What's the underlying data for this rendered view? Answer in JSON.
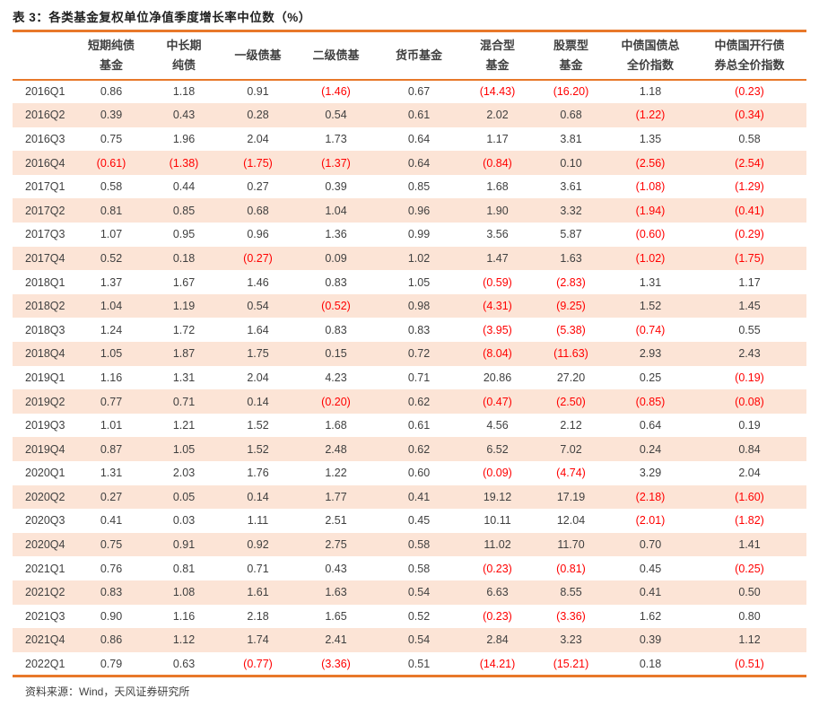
{
  "table": {
    "title": "表 3：各类基金复权单位净值季度增长率中位数（%）",
    "columns": [
      "",
      "短期纯债\n基金",
      "中长期\n纯债",
      "一级债基",
      "二级债基",
      "货币基金",
      "混合型\n基金",
      "股票型\n基金",
      "中债国债总\n全价指数",
      "中债国开行债\n券总全价指数"
    ],
    "rows": [
      {
        "quarter": "2016Q1",
        "values": [
          "0.86",
          "1.18",
          "0.91",
          "(1.46)",
          "0.67",
          "(14.43)",
          "(16.20)",
          "1.18",
          "(0.23)"
        ]
      },
      {
        "quarter": "2016Q2",
        "values": [
          "0.39",
          "0.43",
          "0.28",
          "0.54",
          "0.61",
          "2.02",
          "0.68",
          "(1.22)",
          "(0.34)"
        ]
      },
      {
        "quarter": "2016Q3",
        "values": [
          "0.75",
          "1.96",
          "2.04",
          "1.73",
          "0.64",
          "1.17",
          "3.81",
          "1.35",
          "0.58"
        ]
      },
      {
        "quarter": "2016Q4",
        "values": [
          "(0.61)",
          "(1.38)",
          "(1.75)",
          "(1.37)",
          "0.64",
          "(0.84)",
          "0.10",
          "(2.56)",
          "(2.54)"
        ]
      },
      {
        "quarter": "2017Q1",
        "values": [
          "0.58",
          "0.44",
          "0.27",
          "0.39",
          "0.85",
          "1.68",
          "3.61",
          "(1.08)",
          "(1.29)"
        ]
      },
      {
        "quarter": "2017Q2",
        "values": [
          "0.81",
          "0.85",
          "0.68",
          "1.04",
          "0.96",
          "1.90",
          "3.32",
          "(1.94)",
          "(0.41)"
        ]
      },
      {
        "quarter": "2017Q3",
        "values": [
          "1.07",
          "0.95",
          "0.96",
          "1.36",
          "0.99",
          "3.56",
          "5.87",
          "(0.60)",
          "(0.29)"
        ]
      },
      {
        "quarter": "2017Q4",
        "values": [
          "0.52",
          "0.18",
          "(0.27)",
          "0.09",
          "1.02",
          "1.47",
          "1.63",
          "(1.02)",
          "(1.75)"
        ]
      },
      {
        "quarter": "2018Q1",
        "values": [
          "1.37",
          "1.67",
          "1.46",
          "0.83",
          "1.05",
          "(0.59)",
          "(2.83)",
          "1.31",
          "1.17"
        ]
      },
      {
        "quarter": "2018Q2",
        "values": [
          "1.04",
          "1.19",
          "0.54",
          "(0.52)",
          "0.98",
          "(4.31)",
          "(9.25)",
          "1.52",
          "1.45"
        ]
      },
      {
        "quarter": "2018Q3",
        "values": [
          "1.24",
          "1.72",
          "1.64",
          "0.83",
          "0.83",
          "(3.95)",
          "(5.38)",
          "(0.74)",
          "0.55"
        ]
      },
      {
        "quarter": "2018Q4",
        "values": [
          "1.05",
          "1.87",
          "1.75",
          "0.15",
          "0.72",
          "(8.04)",
          "(11.63)",
          "2.93",
          "2.43"
        ]
      },
      {
        "quarter": "2019Q1",
        "values": [
          "1.16",
          "1.31",
          "2.04",
          "4.23",
          "0.71",
          "20.86",
          "27.20",
          "0.25",
          "(0.19)"
        ]
      },
      {
        "quarter": "2019Q2",
        "values": [
          "0.77",
          "0.71",
          "0.14",
          "(0.20)",
          "0.62",
          "(0.47)",
          "(2.50)",
          "(0.85)",
          "(0.08)"
        ]
      },
      {
        "quarter": "2019Q3",
        "values": [
          "1.01",
          "1.21",
          "1.52",
          "1.68",
          "0.61",
          "4.56",
          "2.12",
          "0.64",
          "0.19"
        ]
      },
      {
        "quarter": "2019Q4",
        "values": [
          "0.87",
          "1.05",
          "1.52",
          "2.48",
          "0.62",
          "6.52",
          "7.02",
          "0.24",
          "0.84"
        ]
      },
      {
        "quarter": "2020Q1",
        "values": [
          "1.31",
          "2.03",
          "1.76",
          "1.22",
          "0.60",
          "(0.09)",
          "(4.74)",
          "3.29",
          "2.04"
        ]
      },
      {
        "quarter": "2020Q2",
        "values": [
          "0.27",
          "0.05",
          "0.14",
          "1.77",
          "0.41",
          "19.12",
          "17.19",
          "(2.18)",
          "(1.60)"
        ]
      },
      {
        "quarter": "2020Q3",
        "values": [
          "0.41",
          "0.03",
          "1.11",
          "2.51",
          "0.45",
          "10.11",
          "12.04",
          "(2.01)",
          "(1.82)"
        ]
      },
      {
        "quarter": "2020Q4",
        "values": [
          "0.75",
          "0.91",
          "0.92",
          "2.75",
          "0.58",
          "11.02",
          "11.70",
          "0.70",
          "1.41"
        ]
      },
      {
        "quarter": "2021Q1",
        "values": [
          "0.76",
          "0.81",
          "0.71",
          "0.43",
          "0.58",
          "(0.23)",
          "(0.81)",
          "0.45",
          "(0.25)"
        ]
      },
      {
        "quarter": "2021Q2",
        "values": [
          "0.83",
          "1.08",
          "1.61",
          "1.63",
          "0.54",
          "6.63",
          "8.55",
          "0.41",
          "0.50"
        ]
      },
      {
        "quarter": "2021Q3",
        "values": [
          "0.90",
          "1.16",
          "2.18",
          "1.65",
          "0.52",
          "(0.23)",
          "(3.36)",
          "1.62",
          "0.80"
        ]
      },
      {
        "quarter": "2021Q4",
        "values": [
          "0.86",
          "1.12",
          "1.74",
          "2.41",
          "0.54",
          "2.84",
          "3.23",
          "0.39",
          "1.12"
        ]
      },
      {
        "quarter": "2022Q1",
        "values": [
          "0.79",
          "0.63",
          "(0.77)",
          "(3.36)",
          "0.51",
          "(14.21)",
          "(15.21)",
          "0.18",
          "(0.51)"
        ]
      }
    ],
    "source": "资料来源：Wind，天风证券研究所"
  },
  "colors": {
    "accent_orange": "#e8782a",
    "stripe_pink": "#fce4d6",
    "negative_red": "#ff0000",
    "text_dark": "#404040"
  }
}
